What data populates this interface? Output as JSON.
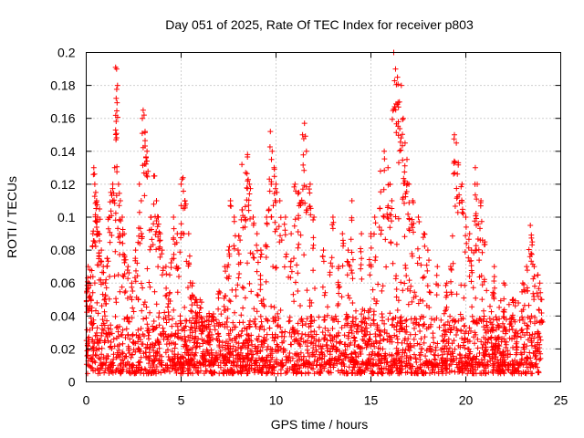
{
  "chart_data": {
    "type": "scatter",
    "title": "Day 051 of 2025, Rate Of TEC Index for receiver p803",
    "xlabel": "GPS time / hours",
    "ylabel": "ROTI / TECUs",
    "xlim": [
      0,
      25
    ],
    "ylim": [
      0,
      0.2
    ],
    "x_ticks": [
      0,
      5,
      10,
      15,
      20,
      25
    ],
    "x_tick_labels": [
      "0",
      "5",
      "10",
      "15",
      "20",
      "25"
    ],
    "y_ticks": [
      0,
      0.02,
      0.04,
      0.06,
      0.08,
      0.1,
      0.12,
      0.14,
      0.16,
      0.18,
      0.2
    ],
    "y_tick_labels": [
      "0",
      "0.02",
      "0.04",
      "0.06",
      "0.08",
      "0.1",
      "0.12",
      "0.14",
      "0.16",
      "0.18",
      "0.2"
    ],
    "grid": true,
    "marker": "+",
    "color": "#ff0000",
    "series": [
      {
        "name": "ROTI",
        "x": [
          0.05,
          0.1,
          0.15,
          0.2,
          0.25,
          0.3,
          0.35,
          0.4,
          0.45,
          0.5,
          0.55,
          0.6,
          0.65,
          0.7,
          0.8,
          0.9,
          1.0,
          1.1,
          1.2,
          1.3,
          1.4,
          1.5,
          1.55,
          1.6,
          1.65,
          1.7,
          1.8,
          1.9,
          2.0,
          2.2,
          2.4,
          2.6,
          2.8,
          2.9,
          3.0,
          3.05,
          3.1,
          3.2,
          3.4,
          3.6,
          3.7,
          3.8,
          3.9,
          4.0,
          4.2,
          4.4,
          4.6,
          4.8,
          5.0,
          5.1,
          5.2,
          5.4,
          5.6,
          5.8,
          6.0,
          6.5,
          7.0,
          7.3,
          7.5,
          7.6,
          7.8,
          8.0,
          8.2,
          8.4,
          8.5,
          8.6,
          8.8,
          9.0,
          9.2,
          9.5,
          9.7,
          9.8,
          9.9,
          10.0,
          10.2,
          10.5,
          10.8,
          11.0,
          11.2,
          11.4,
          11.5,
          11.6,
          11.8,
          12.0,
          12.5,
          13.0,
          13.3,
          13.5,
          13.8,
          14.0,
          14.5,
          15.0,
          15.2,
          15.5,
          15.7,
          15.9,
          16.0,
          16.1,
          16.2,
          16.3,
          16.4,
          16.5,
          16.6,
          16.7,
          16.8,
          16.9,
          17.0,
          17.2,
          17.5,
          17.8,
          18.0,
          18.5,
          19.0,
          19.2,
          19.4,
          19.5,
          19.6,
          19.8,
          20.0,
          20.2,
          20.3,
          20.5,
          20.6,
          20.8,
          21.0,
          21.5,
          22.0,
          22.5,
          23.0,
          23.2,
          23.4,
          23.5,
          23.6,
          23.8,
          23.9,
          24.0
        ],
        "y": [
          0.055,
          0.07,
          0.06,
          0.068,
          0.05,
          0.045,
          0.09,
          0.13,
          0.12,
          0.115,
          0.11,
          0.1,
          0.09,
          0.105,
          0.08,
          0.07,
          0.06,
          0.075,
          0.1,
          0.115,
          0.12,
          0.13,
          0.191,
          0.19,
          0.18,
          0.12,
          0.11,
          0.1,
          0.09,
          0.07,
          0.06,
          0.08,
          0.12,
          0.11,
          0.165,
          0.162,
          0.152,
          0.14,
          0.1,
          0.125,
          0.11,
          0.1,
          0.09,
          0.08,
          0.07,
          0.065,
          0.1,
          0.09,
          0.12,
          0.124,
          0.11,
          0.09,
          0.06,
          0.05,
          0.045,
          0.04,
          0.055,
          0.07,
          0.08,
          0.11,
          0.1,
          0.08,
          0.132,
          0.127,
          0.138,
          0.12,
          0.1,
          0.09,
          0.08,
          0.1,
          0.152,
          0.14,
          0.13,
          0.12,
          0.11,
          0.1,
          0.09,
          0.12,
          0.115,
          0.15,
          0.157,
          0.14,
          0.12,
          0.1,
          0.08,
          0.1,
          0.07,
          0.09,
          0.08,
          0.11,
          0.09,
          0.09,
          0.1,
          0.128,
          0.14,
          0.13,
          0.12,
          0.11,
          0.2,
          0.19,
          0.185,
          0.17,
          0.18,
          0.16,
          0.145,
          0.135,
          0.12,
          0.11,
          0.1,
          0.09,
          0.08,
          0.07,
          0.06,
          0.07,
          0.15,
          0.145,
          0.133,
          0.12,
          0.1,
          0.09,
          0.08,
          0.13,
          0.12,
          0.11,
          0.085,
          0.07,
          0.06,
          0.05,
          0.06,
          0.07,
          0.095,
          0.085,
          0.07,
          0.065,
          0.06,
          0.05
        ],
        "baseline_band": [
          0.005,
          0.04
        ]
      }
    ]
  }
}
